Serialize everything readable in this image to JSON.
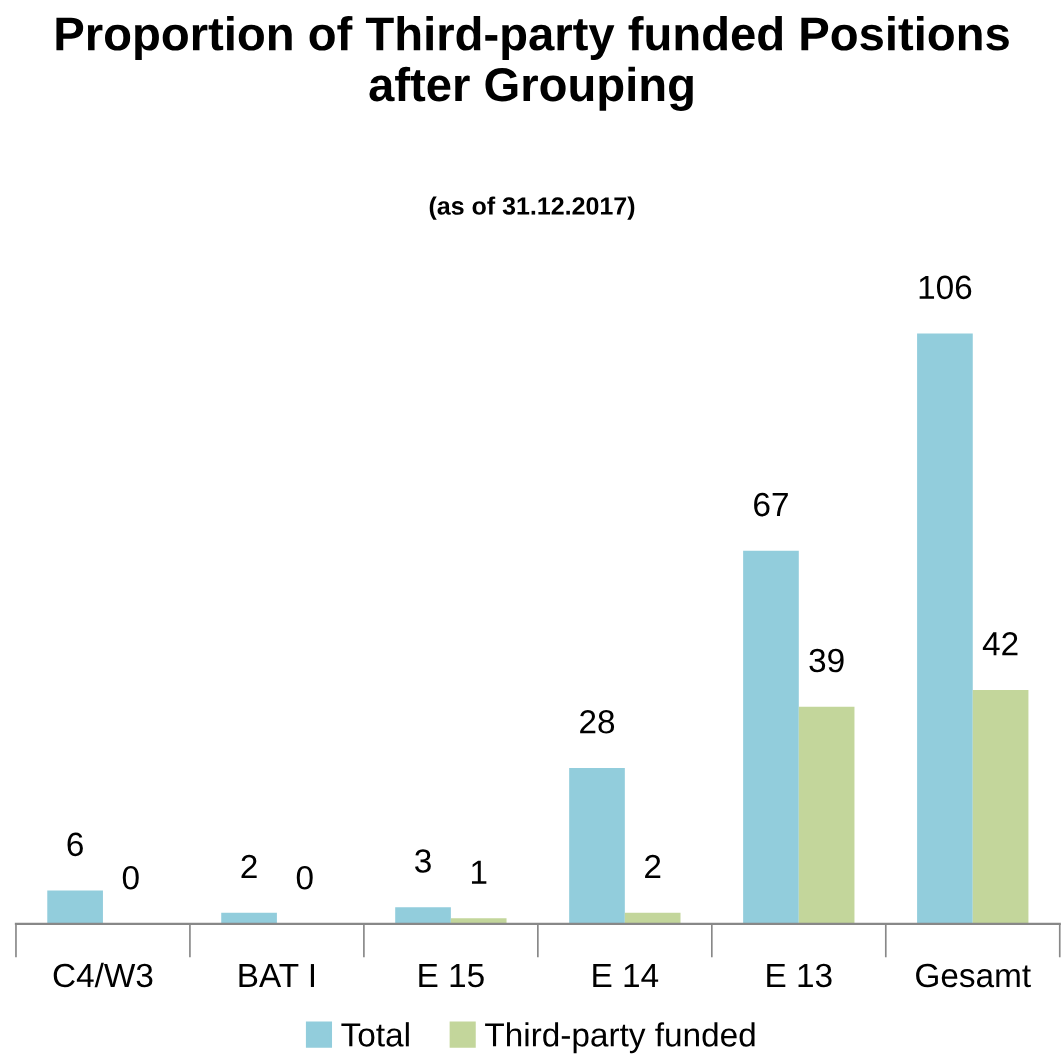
{
  "chart_data": {
    "type": "bar",
    "title": "Proportion of Third-party funded Positions after Grouping",
    "subtitle": "(as of 31.12.2017)",
    "categories": [
      "C4/W3",
      "BAT I",
      "E 15",
      "E 14",
      "E 13",
      "Gesamt"
    ],
    "series": [
      {
        "name": "Total",
        "color": "#92cddc",
        "values": [
          6,
          2,
          3,
          28,
          67,
          106
        ]
      },
      {
        "name": "Third-party funded",
        "color": "#c3d69b",
        "values": [
          0,
          0,
          1,
          2,
          39,
          42
        ]
      }
    ],
    "data_labels": true,
    "grid": false,
    "legend": "bottom"
  }
}
